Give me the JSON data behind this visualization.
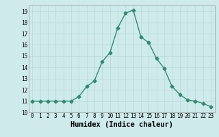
{
  "x": [
    0,
    1,
    2,
    3,
    4,
    5,
    6,
    7,
    8,
    9,
    10,
    11,
    12,
    13,
    14,
    15,
    16,
    17,
    18,
    19,
    20,
    21,
    22,
    23
  ],
  "y": [
    11,
    11,
    11,
    11,
    11,
    11,
    11.4,
    12.3,
    12.8,
    14.5,
    15.3,
    17.5,
    18.8,
    19.1,
    16.7,
    16.2,
    14.8,
    13.9,
    12.3,
    11.6,
    11.1,
    11.0,
    10.8,
    10.5
  ],
  "line_color": "#2e8b6e",
  "marker": "D",
  "marker_size": 2.5,
  "linewidth": 1.0,
  "background_color": "#ceeaea",
  "grid_color": "#b8d8d8",
  "xlabel": "Humidex (Indice chaleur)",
  "xlim": [
    -0.5,
    23.5
  ],
  "ylim": [
    10,
    19.5
  ],
  "yticks": [
    10,
    11,
    12,
    13,
    14,
    15,
    16,
    17,
    18,
    19
  ],
  "xticks": [
    0,
    1,
    2,
    3,
    4,
    5,
    6,
    7,
    8,
    9,
    10,
    11,
    12,
    13,
    14,
    15,
    16,
    17,
    18,
    19,
    20,
    21,
    22,
    23
  ],
  "tick_fontsize": 5.5,
  "xlabel_fontsize": 7.5
}
